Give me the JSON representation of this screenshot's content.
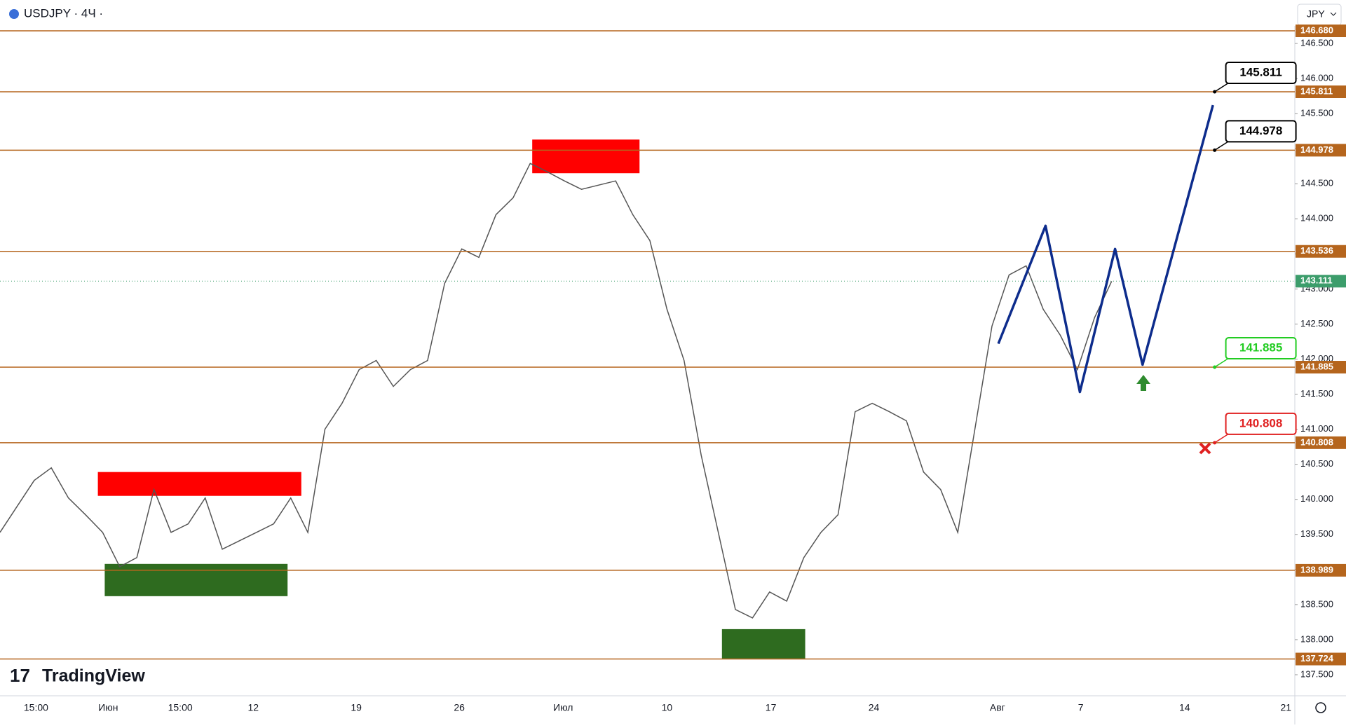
{
  "header": {
    "symbol": "USDJPY · 4Ч ·",
    "currency": "JPY",
    "brand": "TradingView"
  },
  "chart_data": {
    "type": "line",
    "color": "#555555",
    "values": [
      139.53,
      139.9,
      140.27,
      140.45,
      140.02,
      139.78,
      139.53,
      139.04,
      139.17,
      140.14,
      139.53,
      139.65,
      140.02,
      139.29,
      139.41,
      139.53,
      139.65,
      140.02,
      139.53,
      141.0,
      141.37,
      141.85,
      141.98,
      141.61,
      141.85,
      141.98,
      143.08,
      143.57,
      143.45,
      144.06,
      144.3,
      144.79,
      144.67,
      144.54,
      144.42,
      144.48,
      144.54,
      144.06,
      143.69,
      142.71,
      141.98,
      140.63,
      139.53,
      138.43,
      138.31,
      138.68,
      138.55,
      139.17,
      139.53,
      139.78,
      141.25,
      141.37,
      141.25,
      141.12,
      140.39,
      140.14,
      139.53,
      141.0,
      142.47,
      143.2,
      143.33,
      142.71,
      142.34,
      141.85,
      142.59,
      143.11
    ],
    "ylim": [
      137.2,
      146.75
    ],
    "yticks": [
      {
        "value": 137.5,
        "label": "137.500"
      },
      {
        "value": 138,
        "label": "138.000"
      },
      {
        "value": 138.5,
        "label": "138.500"
      },
      {
        "value": 139,
        "label": "139.000"
      },
      {
        "value": 139.5,
        "label": "139.500"
      },
      {
        "value": 140,
        "label": "140.000"
      },
      {
        "value": 140.5,
        "label": "140.500"
      },
      {
        "value": 141,
        "label": "141.000"
      },
      {
        "value": 141.5,
        "label": "141.500"
      },
      {
        "value": 142,
        "label": "142.000"
      },
      {
        "value": 142.5,
        "label": "142.500"
      },
      {
        "value": 143,
        "label": "143.000"
      },
      {
        "value": 143.5,
        "label": "143.500"
      },
      {
        "value": 144,
        "label": "144.000"
      },
      {
        "value": 144.5,
        "label": "144.500"
      },
      {
        "value": 145,
        "label": "145.000"
      },
      {
        "value": 145.5,
        "label": "145.500"
      },
      {
        "value": 146,
        "label": "146.000"
      },
      {
        "value": 146.5,
        "label": "146.500"
      }
    ],
    "xticks": [
      "15:00",
      "Июн",
      "15:00",
      "12",
      "19",
      "26",
      "Июл",
      "10",
      "17",
      "24",
      "Авг",
      "7",
      "14",
      "21"
    ],
    "level_color": "#b5651d",
    "levels": [
      {
        "value": 146.68,
        "label": "146.680"
      },
      {
        "value": 145.811,
        "label": "145.811"
      },
      {
        "value": 144.978,
        "label": "144.978"
      },
      {
        "value": 143.536,
        "label": "143.536"
      },
      {
        "value": 141.885,
        "label": "141.885"
      },
      {
        "value": 140.808,
        "label": "140.808"
      },
      {
        "value": 138.989,
        "label": "138.989"
      },
      {
        "value": 137.724,
        "label": "137.724"
      }
    ],
    "current_price": {
      "value": 143.111,
      "label": "143.111",
      "color": "#3c9d6b"
    },
    "zones": [
      {
        "top": 145.13,
        "bottom": 144.65,
        "color": "#ff0000"
      },
      {
        "top": 140.39,
        "bottom": 140.05,
        "color": "#ff0000"
      },
      {
        "top": 139.08,
        "bottom": 138.62,
        "color": "#2e6b1f"
      },
      {
        "top": 138.15,
        "bottom": 137.73,
        "color": "#2e6b1f"
      }
    ],
    "projection": {
      "color": "#0d2c8c",
      "values": [
        142.22,
        143.9,
        141.53,
        143.57,
        141.92,
        145.62
      ]
    },
    "annotations": [
      {
        "value": 145.811,
        "label": "145.811",
        "color": "#000000"
      },
      {
        "value": 144.978,
        "label": "144.978",
        "color": "#000000"
      },
      {
        "value": 141.885,
        "label": "141.885",
        "color": "#22cc22"
      },
      {
        "value": 140.808,
        "label": "140.808",
        "color": "#e02020"
      }
    ]
  }
}
